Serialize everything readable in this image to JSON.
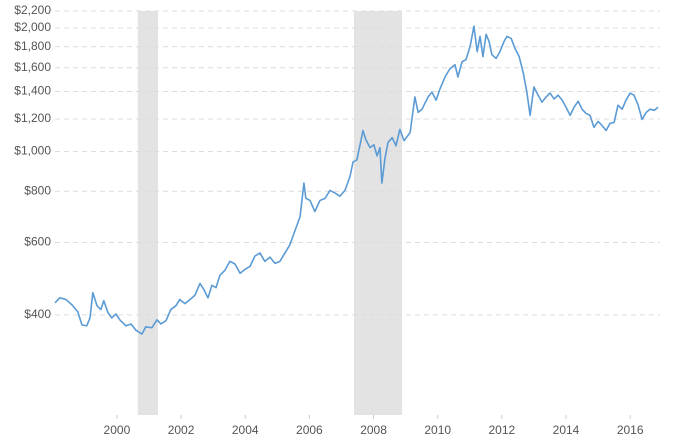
{
  "chart_data": {
    "type": "line",
    "log_y": true,
    "grid": true,
    "xlim": [
      1998.07,
      2016.93
    ],
    "ylim": [
      228,
      2200
    ],
    "xticks": [
      2000,
      2002,
      2004,
      2006,
      2008,
      2010,
      2012,
      2014,
      2016
    ],
    "yticks": [
      {
        "value": 400,
        "label": "$400"
      },
      {
        "value": 600,
        "label": "$600"
      },
      {
        "value": 800,
        "label": "$800"
      },
      {
        "value": 1000,
        "label": "$1,000"
      },
      {
        "value": 1200,
        "label": "$1,200"
      },
      {
        "value": 1400,
        "label": "$1,400"
      },
      {
        "value": 1600,
        "label": "$1,600"
      },
      {
        "value": 1800,
        "label": "$1,800"
      },
      {
        "value": 2000,
        "label": "$2,000"
      },
      {
        "value": 2200,
        "label": "$2,200"
      }
    ],
    "recessions": [
      [
        2000.65,
        2001.28
      ],
      [
        2007.39,
        2008.89
      ]
    ],
    "recession_color": "#e3e3e3",
    "series": [
      {
        "color": "#5b9bd5",
        "x": [
          1998.07,
          1998.22,
          1998.41,
          1998.6,
          1998.78,
          1998.91,
          1999.06,
          1999.16,
          1999.25,
          1999.38,
          1999.5,
          1999.59,
          1999.72,
          1999.84,
          1999.97,
          2000.09,
          2000.28,
          2000.44,
          2000.59,
          2000.78,
          2000.9,
          2001.09,
          2001.25,
          2001.37,
          2001.53,
          2001.68,
          2001.84,
          2001.96,
          2002.12,
          2002.28,
          2002.43,
          2002.59,
          2002.71,
          2002.84,
          2002.96,
          2003.09,
          2003.21,
          2003.37,
          2003.52,
          2003.68,
          2003.84,
          2003.99,
          2004.15,
          2004.3,
          2004.46,
          2004.61,
          2004.77,
          2004.93,
          2005.08,
          2005.24,
          2005.39,
          2005.55,
          2005.71,
          2005.83,
          2005.89,
          2006.02,
          2006.17,
          2006.33,
          2006.49,
          2006.64,
          2006.8,
          2006.95,
          2007.11,
          2007.27,
          2007.36,
          2007.48,
          2007.58,
          2007.67,
          2007.76,
          2007.89,
          2008.01,
          2008.11,
          2008.2,
          2008.26,
          2008.36,
          2008.45,
          2008.58,
          2008.7,
          2008.82,
          2008.95,
          2009.14,
          2009.29,
          2009.39,
          2009.51,
          2009.7,
          2009.82,
          2009.95,
          2010.07,
          2010.23,
          2010.38,
          2010.54,
          2010.63,
          2010.76,
          2010.88,
          2011.01,
          2011.13,
          2011.23,
          2011.32,
          2011.41,
          2011.51,
          2011.6,
          2011.69,
          2011.82,
          2011.94,
          2012.07,
          2012.16,
          2012.29,
          2012.41,
          2012.54,
          2012.66,
          2012.78,
          2012.88,
          2013.0,
          2013.13,
          2013.25,
          2013.38,
          2013.5,
          2013.63,
          2013.75,
          2013.88,
          2014.0,
          2014.13,
          2014.25,
          2014.38,
          2014.5,
          2014.62,
          2014.75,
          2014.87,
          2015.0,
          2015.12,
          2015.25,
          2015.37,
          2015.5,
          2015.62,
          2015.75,
          2015.87,
          2016.0,
          2016.12,
          2016.25,
          2016.37,
          2016.5,
          2016.62,
          2016.75,
          2016.87
        ],
        "values": [
          428,
          440,
          436,
          423,
          407,
          378,
          376,
          393,
          453,
          421,
          412,
          433,
          405,
          393,
          402,
          389,
          376,
          380,
          367,
          359,
          374,
          372,
          389,
          380,
          387,
          412,
          421,
          436,
          426,
          436,
          446,
          477,
          461,
          440,
          472,
          466,
          499,
          514,
          540,
          532,
          505,
          516,
          525,
          556,
          566,
          540,
          553,
          534,
          540,
          566,
          592,
          641,
          694,
          838,
          769,
          760,
          714,
          760,
          769,
          804,
          792,
          778,
          804,
          871,
          943,
          954,
          1039,
          1125,
          1069,
          1022,
          1039,
          976,
          1022,
          838,
          966,
          1051,
          1081,
          1033,
          1132,
          1063,
          1112,
          1358,
          1246,
          1268,
          1358,
          1396,
          1334,
          1420,
          1520,
          1591,
          1627,
          1520,
          1655,
          1674,
          1803,
          2020,
          1752,
          1908,
          1703,
          1930,
          1856,
          1722,
          1686,
          1752,
          1856,
          1908,
          1886,
          1784,
          1703,
          1564,
          1396,
          1225,
          1436,
          1372,
          1319,
          1358,
          1388,
          1343,
          1372,
          1334,
          1282,
          1225,
          1282,
          1326,
          1268,
          1239,
          1225,
          1145,
          1184,
          1158,
          1125,
          1171,
          1177,
          1297,
          1268,
          1334,
          1388,
          1372,
          1297,
          1197,
          1246,
          1268,
          1260,
          1282
        ]
      }
    ]
  }
}
